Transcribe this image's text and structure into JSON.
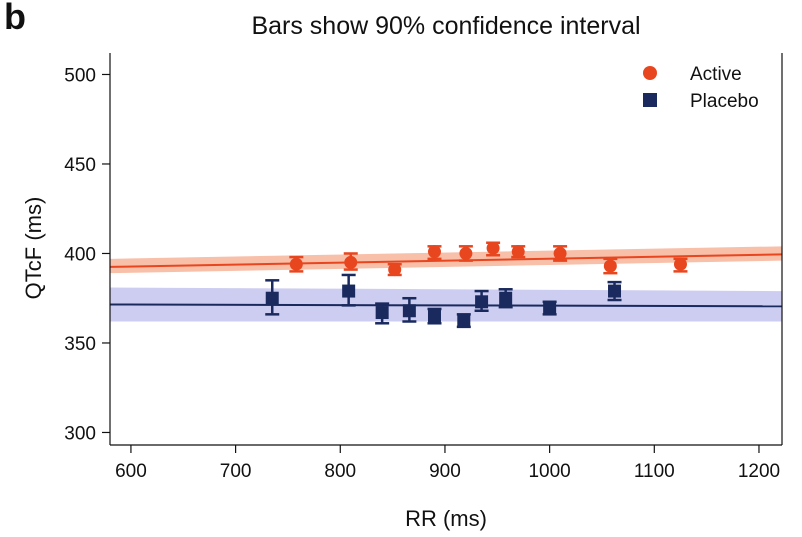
{
  "panel_label": "b",
  "chart_data": {
    "type": "scatter",
    "title": "Bars show 90% confidence interval",
    "xlabel": "RR (ms)",
    "ylabel": "QTcF (ms)",
    "xlim": [
      580,
      1222
    ],
    "ylim": [
      293,
      512
    ],
    "xticks": [
      600,
      700,
      800,
      900,
      1000,
      1100,
      1200
    ],
    "yticks": [
      300,
      350,
      400,
      450,
      500
    ],
    "legend_position": "top-right",
    "series": [
      {
        "name": "Active",
        "marker": "circle",
        "color": "#e8461f",
        "band_color": "#f7b49a",
        "fit": {
          "x": [
            580,
            1222
          ],
          "y": [
            392.5,
            399.5
          ]
        },
        "band": {
          "x": [
            580,
            1222
          ],
          "lower": [
            389,
            396
          ],
          "upper": [
            397,
            404
          ]
        },
        "points": [
          {
            "x": 758,
            "y": 394,
            "lo": 390,
            "hi": 398
          },
          {
            "x": 810,
            "y": 395,
            "lo": 391,
            "hi": 400
          },
          {
            "x": 852,
            "y": 391,
            "lo": 388,
            "hi": 394
          },
          {
            "x": 890,
            "y": 401,
            "lo": 397,
            "hi": 404
          },
          {
            "x": 920,
            "y": 400,
            "lo": 396,
            "hi": 404
          },
          {
            "x": 946,
            "y": 403,
            "lo": 399,
            "hi": 406
          },
          {
            "x": 970,
            "y": 401,
            "lo": 398,
            "hi": 404
          },
          {
            "x": 1010,
            "y": 400,
            "lo": 396,
            "hi": 404
          },
          {
            "x": 1058,
            "y": 393,
            "lo": 389,
            "hi": 397
          },
          {
            "x": 1125,
            "y": 394,
            "lo": 390,
            "hi": 397
          }
        ]
      },
      {
        "name": "Placebo",
        "marker": "square",
        "color": "#1a2a5e",
        "band_color": "#c4c4ee",
        "fit": {
          "x": [
            580,
            1222
          ],
          "y": [
            371.5,
            370.5
          ]
        },
        "band": {
          "x": [
            580,
            1222
          ],
          "lower": [
            362,
            362
          ],
          "upper": [
            381,
            379
          ]
        },
        "points": [
          {
            "x": 735,
            "y": 375,
            "lo": 366,
            "hi": 385
          },
          {
            "x": 808,
            "y": 379,
            "lo": 371,
            "hi": 388
          },
          {
            "x": 840,
            "y": 367,
            "lo": 361,
            "hi": 372
          },
          {
            "x": 866,
            "y": 368,
            "lo": 362,
            "hi": 375
          },
          {
            "x": 890,
            "y": 365,
            "lo": 361,
            "hi": 369
          },
          {
            "x": 918,
            "y": 362,
            "lo": 359,
            "hi": 366
          },
          {
            "x": 935,
            "y": 373,
            "lo": 368,
            "hi": 379
          },
          {
            "x": 958,
            "y": 375,
            "lo": 370,
            "hi": 380
          },
          {
            "x": 1000,
            "y": 370,
            "lo": 366,
            "hi": 373
          },
          {
            "x": 1062,
            "y": 379,
            "lo": 374,
            "hi": 384
          }
        ]
      }
    ]
  }
}
